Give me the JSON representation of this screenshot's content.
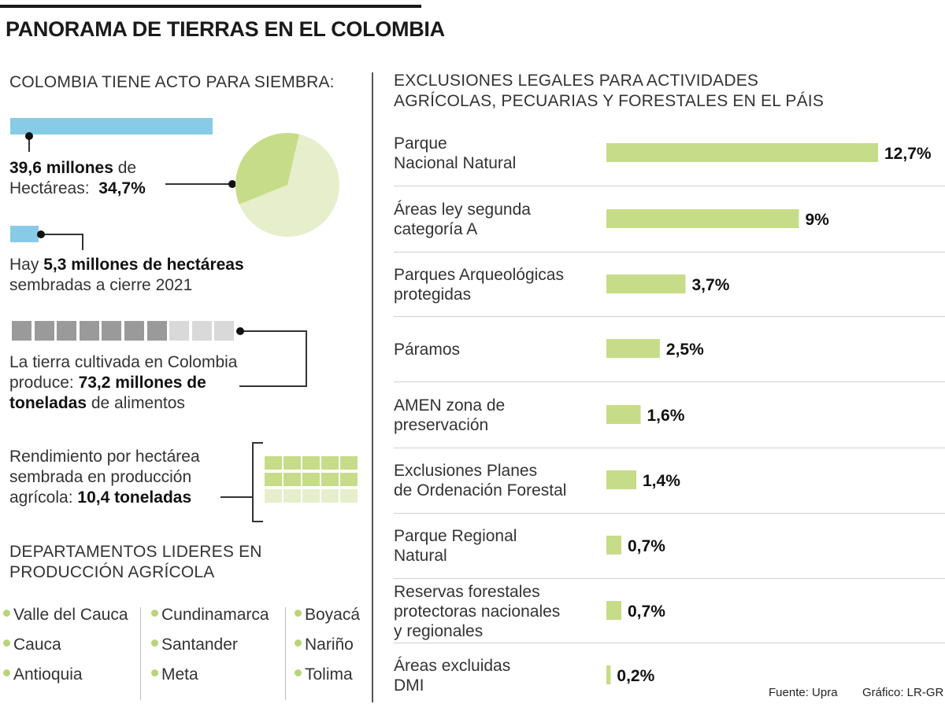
{
  "title": "PANORAMA DE TIERRAS EN EL COLOMBIA",
  "left": {
    "heading": "COLOMBIA TIENE ACTO PARA SIEMBRA:",
    "aptitude": {
      "value_bold": "39,6 millones",
      "value_rest": " de",
      "line2": "Hectáreas:",
      "share_label": "34,7%",
      "share": 34.7
    },
    "sown": {
      "prefix": "Hay ",
      "bold": "5,3 millones de hectáreas",
      "line2": "sembradas a cierre 2021"
    },
    "food": {
      "line1": "La tierra cultivada en Colombia",
      "line2_prefix": "produce: ",
      "line2_bold": "73,2 millones de",
      "line3_bold": "toneladas",
      "line3_rest": " de alimentos",
      "units_total": 10,
      "units_filled": 7
    },
    "yield": {
      "line1": "Rendimiento por hectárea",
      "line2": "sembrada en producción",
      "line3_prefix": "agrícola: ",
      "line3_bold": "10,4 toneladas"
    },
    "departments": {
      "heading_line1": "DEPARTAMENTOS LIDERES EN",
      "heading_line2": "PRODUCCIÓN AGRÍCOLA",
      "columns": [
        [
          "Valle del Cauca",
          "Cauca",
          "Antioquia"
        ],
        [
          "Cundinamarca",
          "Santander",
          "Meta"
        ],
        [
          "Boyacá",
          "Nariño",
          "Tolima"
        ]
      ]
    }
  },
  "right": {
    "heading_line1": "EXCLUSIONES LEGALES PARA ACTIVIDADES",
    "heading_line2": "AGRÍCOLAS, PECUARIAS Y FORESTALES EN EL PÁIS"
  },
  "chart_data": {
    "type": "bar",
    "orientation": "horizontal",
    "title": "EXCLUSIONES LEGALES PARA ACTIVIDADES AGRÍCOLAS, PECUARIAS Y FORESTALES EN EL PÁIS",
    "unit": "%",
    "categories": [
      [
        "Parque",
        "Nacional Natural"
      ],
      [
        "Áreas ley segunda",
        "categoría A"
      ],
      [
        "Parques Arqueológicas",
        "protegidas"
      ],
      [
        "Páramos"
      ],
      [
        "AMEN zona de",
        "preservación"
      ],
      [
        "Exclusiones Planes",
        "de Ordenación Forestal"
      ],
      [
        "Parque Regional",
        "Natural"
      ],
      [
        "Reservas forestales",
        "protectoras nacionales",
        "y regionales"
      ],
      [
        "Áreas excluidas",
        "DMI"
      ]
    ],
    "values": [
      12.7,
      9,
      3.7,
      2.5,
      1.6,
      1.4,
      0.7,
      0.7,
      0.2
    ],
    "labels": [
      "12,7%",
      "9%",
      "3,7%",
      "2,5%",
      "1,6%",
      "1,4%",
      "0,7%",
      "0,7%",
      "0,2%"
    ],
    "xlim": [
      0,
      12.7
    ]
  },
  "footer": {
    "source": "Fuente: Upra",
    "graphic": "Gráfico: LR-GR"
  },
  "colors": {
    "blue": "#87cbe6",
    "green": "#c7dc88",
    "green_light": "#e7eecb",
    "gray_dark": "#9a9a9a",
    "gray_light": "#d9d9d9"
  }
}
